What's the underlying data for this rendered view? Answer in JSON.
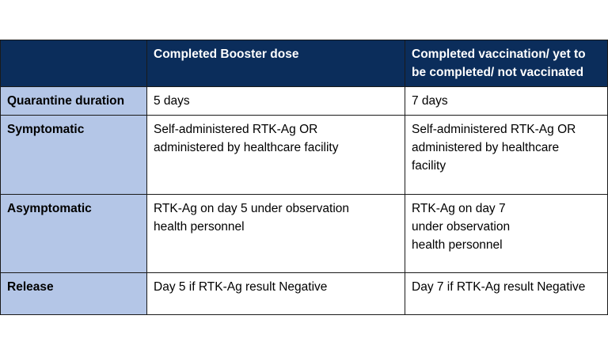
{
  "table": {
    "header": [
      "Completed Booster dose",
      "Completed vaccination/ yet to be completed/ not vaccinated"
    ],
    "rows": [
      {
        "label": "Quarantine duration",
        "cells": [
          [
            "5 days"
          ],
          [
            "7 days"
          ]
        ]
      },
      {
        "label": "Symptomatic",
        "cells": [
          [
            "Self-administered RTK-Ag OR",
            "administered by healthcare facility"
          ],
          [
            "Self-administered RTK-Ag OR",
            "administered by healthcare",
            "facility"
          ]
        ]
      },
      {
        "label": "Asymptomatic",
        "cells": [
          [
            "RTK-Ag on day 5 under observation",
            "health personnel"
          ],
          [
            "RTK-Ag on day 7",
            "under observation",
            "health personnel"
          ]
        ]
      },
      {
        "label": "Release",
        "cells": [
          [
            "Day 5 if RTK-Ag result Negative"
          ],
          [
            "Day 7 if RTK-Ag result Negative"
          ]
        ]
      }
    ]
  }
}
